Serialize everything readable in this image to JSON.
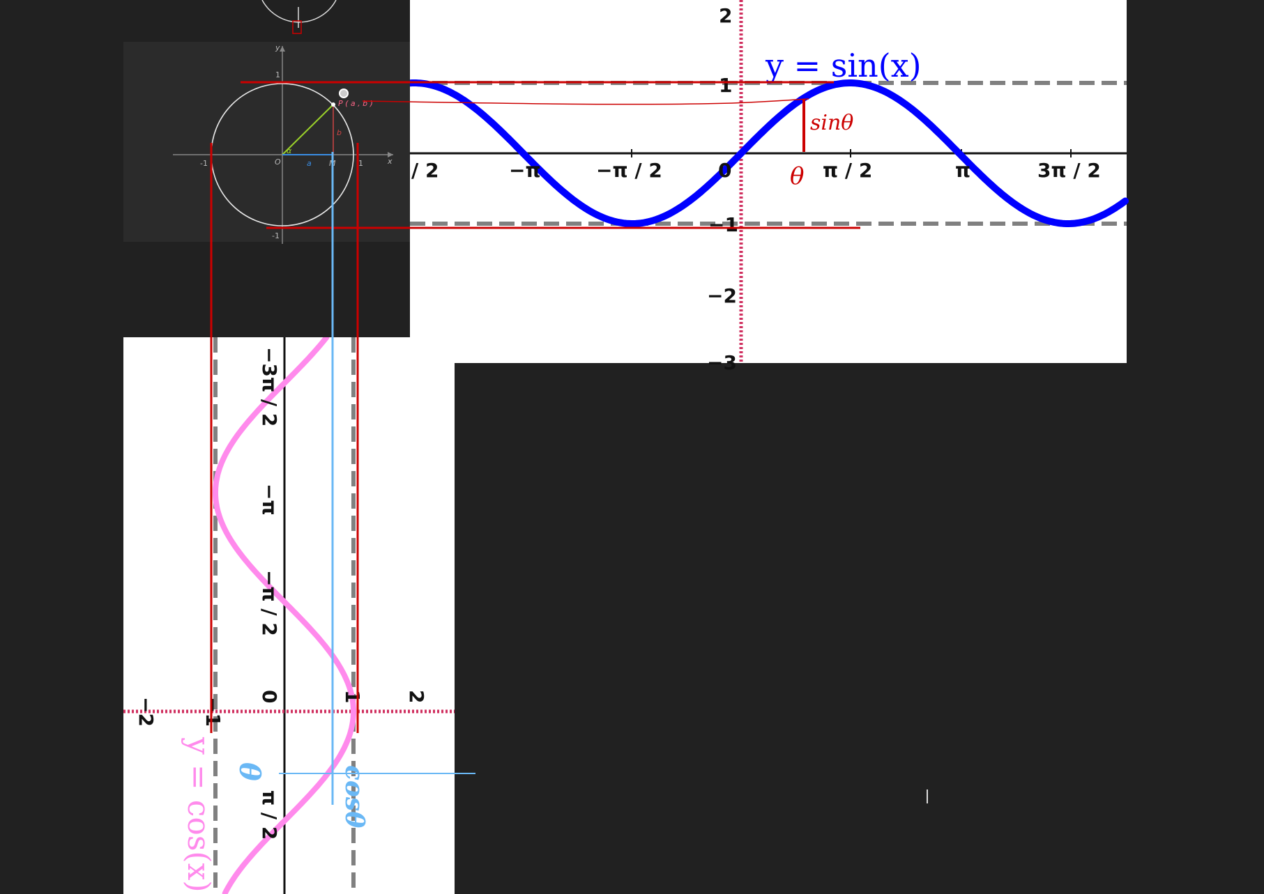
{
  "colors": {
    "background": "#212121",
    "sin_curve": "#0000ff",
    "cos_curve": "#ff8aec",
    "annotation_red": "#cc0000",
    "annotation_blue": "#6ab8f5",
    "dash": "#808080",
    "circle_panel": "#2b2b2b"
  },
  "sin_panel": {
    "equation": "y = sin(x)",
    "x_ticks": [
      "/ 2",
      "−π",
      "−π / 2",
      "0",
      "π / 2",
      "π",
      "3π / 2"
    ],
    "y_ticks": [
      "2",
      "1",
      "−1",
      "−2",
      "−3"
    ],
    "annotation_theta": "θ",
    "annotation_sin": "sinθ"
  },
  "cos_panel": {
    "equation": "y = cos(x)",
    "axis_ticks": [
      "−2",
      "−1",
      "0",
      "1",
      "2"
    ],
    "angle_ticks": [
      "−3π / 2",
      "−π",
      "−π / 2",
      "π / 2"
    ],
    "annotation_theta": "θ",
    "annotation_cos": "cosθ"
  },
  "unit_circle": {
    "label_y": "y",
    "label_x": "x",
    "label_origin": "O",
    "label_one_top": "1",
    "label_neg_one_bottom": "-1",
    "label_neg_one_left": "-1",
    "label_one_right": "1",
    "label_alpha": "α",
    "label_a": "a",
    "label_b": "b",
    "label_m": "M",
    "label_point": "P ( a , b )"
  },
  "chart_data": [
    {
      "type": "line",
      "title": "y = sin(x)",
      "function": "sin",
      "x_ticks": [
        "−π",
        "−π / 2",
        "0",
        "π / 2",
        "π",
        "3π / 2"
      ],
      "y_ticks": [
        2,
        1,
        -1,
        -2
      ],
      "xlim": [
        -3.3,
        5.3
      ],
      "ylim": [
        -3,
        2.1
      ]
    },
    {
      "type": "line",
      "title": "y = cos(x)",
      "function": "cos",
      "orientation": "rotated 90°",
      "x_ticks": [
        "−3π / 2",
        "−π",
        "−π / 2",
        "π / 2"
      ],
      "y_ticks": [
        -2,
        -1,
        0,
        1,
        2
      ]
    }
  ]
}
